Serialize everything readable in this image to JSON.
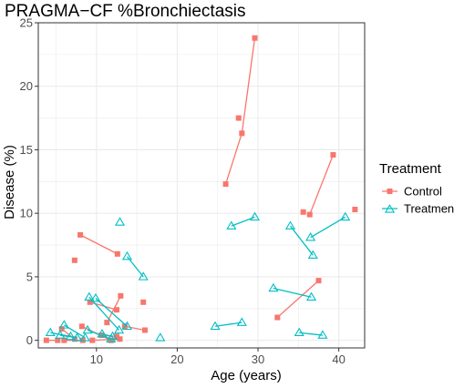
{
  "chart_data": {
    "type": "line",
    "title": "PRAGMA−CF %Bronchiectasis",
    "xlabel": "Age (years)",
    "ylabel": "Disease (%)",
    "xlim": [
      2.8,
      43.2
    ],
    "ylim": [
      -0.6,
      25
    ],
    "xticks": [
      10,
      20,
      30,
      40
    ],
    "yticks": [
      0,
      5,
      10,
      15,
      20,
      25
    ],
    "grid": true,
    "legend_position": "right",
    "legend": {
      "title": "Treatment",
      "entries": [
        {
          "name": "Control",
          "color": "#f8766d",
          "marker": "square"
        },
        {
          "name": "Treatment",
          "color": "#00bfc4",
          "marker": "triangle"
        }
      ]
    },
    "series": [
      {
        "name": "Control",
        "color": "#f8766d",
        "subjects": [
          [
            [
              26.0,
              12.3
            ],
            [
              28.0,
              16.3
            ],
            [
              29.6,
              23.8
            ]
          ],
          [
            [
              27.6,
              17.5
            ]
          ],
          [
            [
              35.6,
              10.1
            ]
          ],
          [
            [
              36.4,
              9.9
            ],
            [
              39.3,
              14.6
            ]
          ],
          [
            [
              42.0,
              10.3
            ]
          ],
          [
            [
              32.4,
              1.8
            ],
            [
              37.5,
              4.7
            ]
          ],
          [
            [
              8.0,
              8.3
            ],
            [
              12.6,
              6.8
            ]
          ],
          [
            [
              7.3,
              6.3
            ]
          ],
          [
            [
              9.2,
              3.0
            ],
            [
              12.5,
              2.4
            ]
          ],
          [
            [
              11.3,
              1.4
            ],
            [
              13.0,
              3.5
            ]
          ],
          [
            [
              15.8,
              3.0
            ]
          ],
          [
            [
              8.2,
              1.1
            ],
            [
              11.8,
              0.0
            ]
          ],
          [
            [
              13.5,
              1.1
            ],
            [
              16.0,
              0.8
            ]
          ],
          [
            [
              3.8,
              0.0
            ],
            [
              5.2,
              0.0
            ]
          ],
          [
            [
              6.0,
              0.0
            ],
            [
              8.3,
              0.0
            ]
          ],
          [
            [
              9.5,
              0.0
            ],
            [
              12.9,
              0.1
            ]
          ],
          [
            [
              10.6,
              0.4
            ],
            [
              12.5,
              0.3
            ]
          ],
          [
            [
              5.7,
              0.9
            ],
            [
              7.3,
              0.1
            ]
          ]
        ]
      },
      {
        "name": "Treatment",
        "color": "#00bfc4",
        "subjects": [
          [
            [
              26.7,
              9.0
            ],
            [
              29.6,
              9.7
            ]
          ],
          [
            [
              34.0,
              9.0
            ],
            [
              36.8,
              6.7
            ]
          ],
          [
            [
              36.5,
              8.1
            ],
            [
              40.8,
              9.7
            ]
          ],
          [
            [
              31.9,
              4.1
            ],
            [
              36.6,
              3.4
            ]
          ],
          [
            [
              35.1,
              0.6
            ],
            [
              38.0,
              0.4
            ]
          ],
          [
            [
              24.7,
              1.1
            ],
            [
              28.0,
              1.4
            ]
          ],
          [
            [
              12.9,
              9.3
            ]
          ],
          [
            [
              13.8,
              6.6
            ],
            [
              15.8,
              5.0
            ]
          ],
          [
            [
              9.1,
              3.4
            ],
            [
              12.8,
              0.8
            ]
          ],
          [
            [
              9.9,
              3.3
            ],
            [
              13.8,
              1.1
            ]
          ],
          [
            [
              17.9,
              0.2
            ]
          ],
          [
            [
              4.3,
              0.6
            ],
            [
              6.8,
              0.3
            ]
          ],
          [
            [
              6.0,
              1.2
            ],
            [
              8.6,
              0.2
            ]
          ],
          [
            [
              8.9,
              0.8
            ],
            [
              11.8,
              0.1
            ]
          ],
          [
            [
              10.7,
              0.5
            ],
            [
              12.0,
              0.3
            ]
          ],
          [
            [
              5.5,
              0.4
            ],
            [
              7.6,
              0.2
            ]
          ]
        ]
      }
    ]
  }
}
